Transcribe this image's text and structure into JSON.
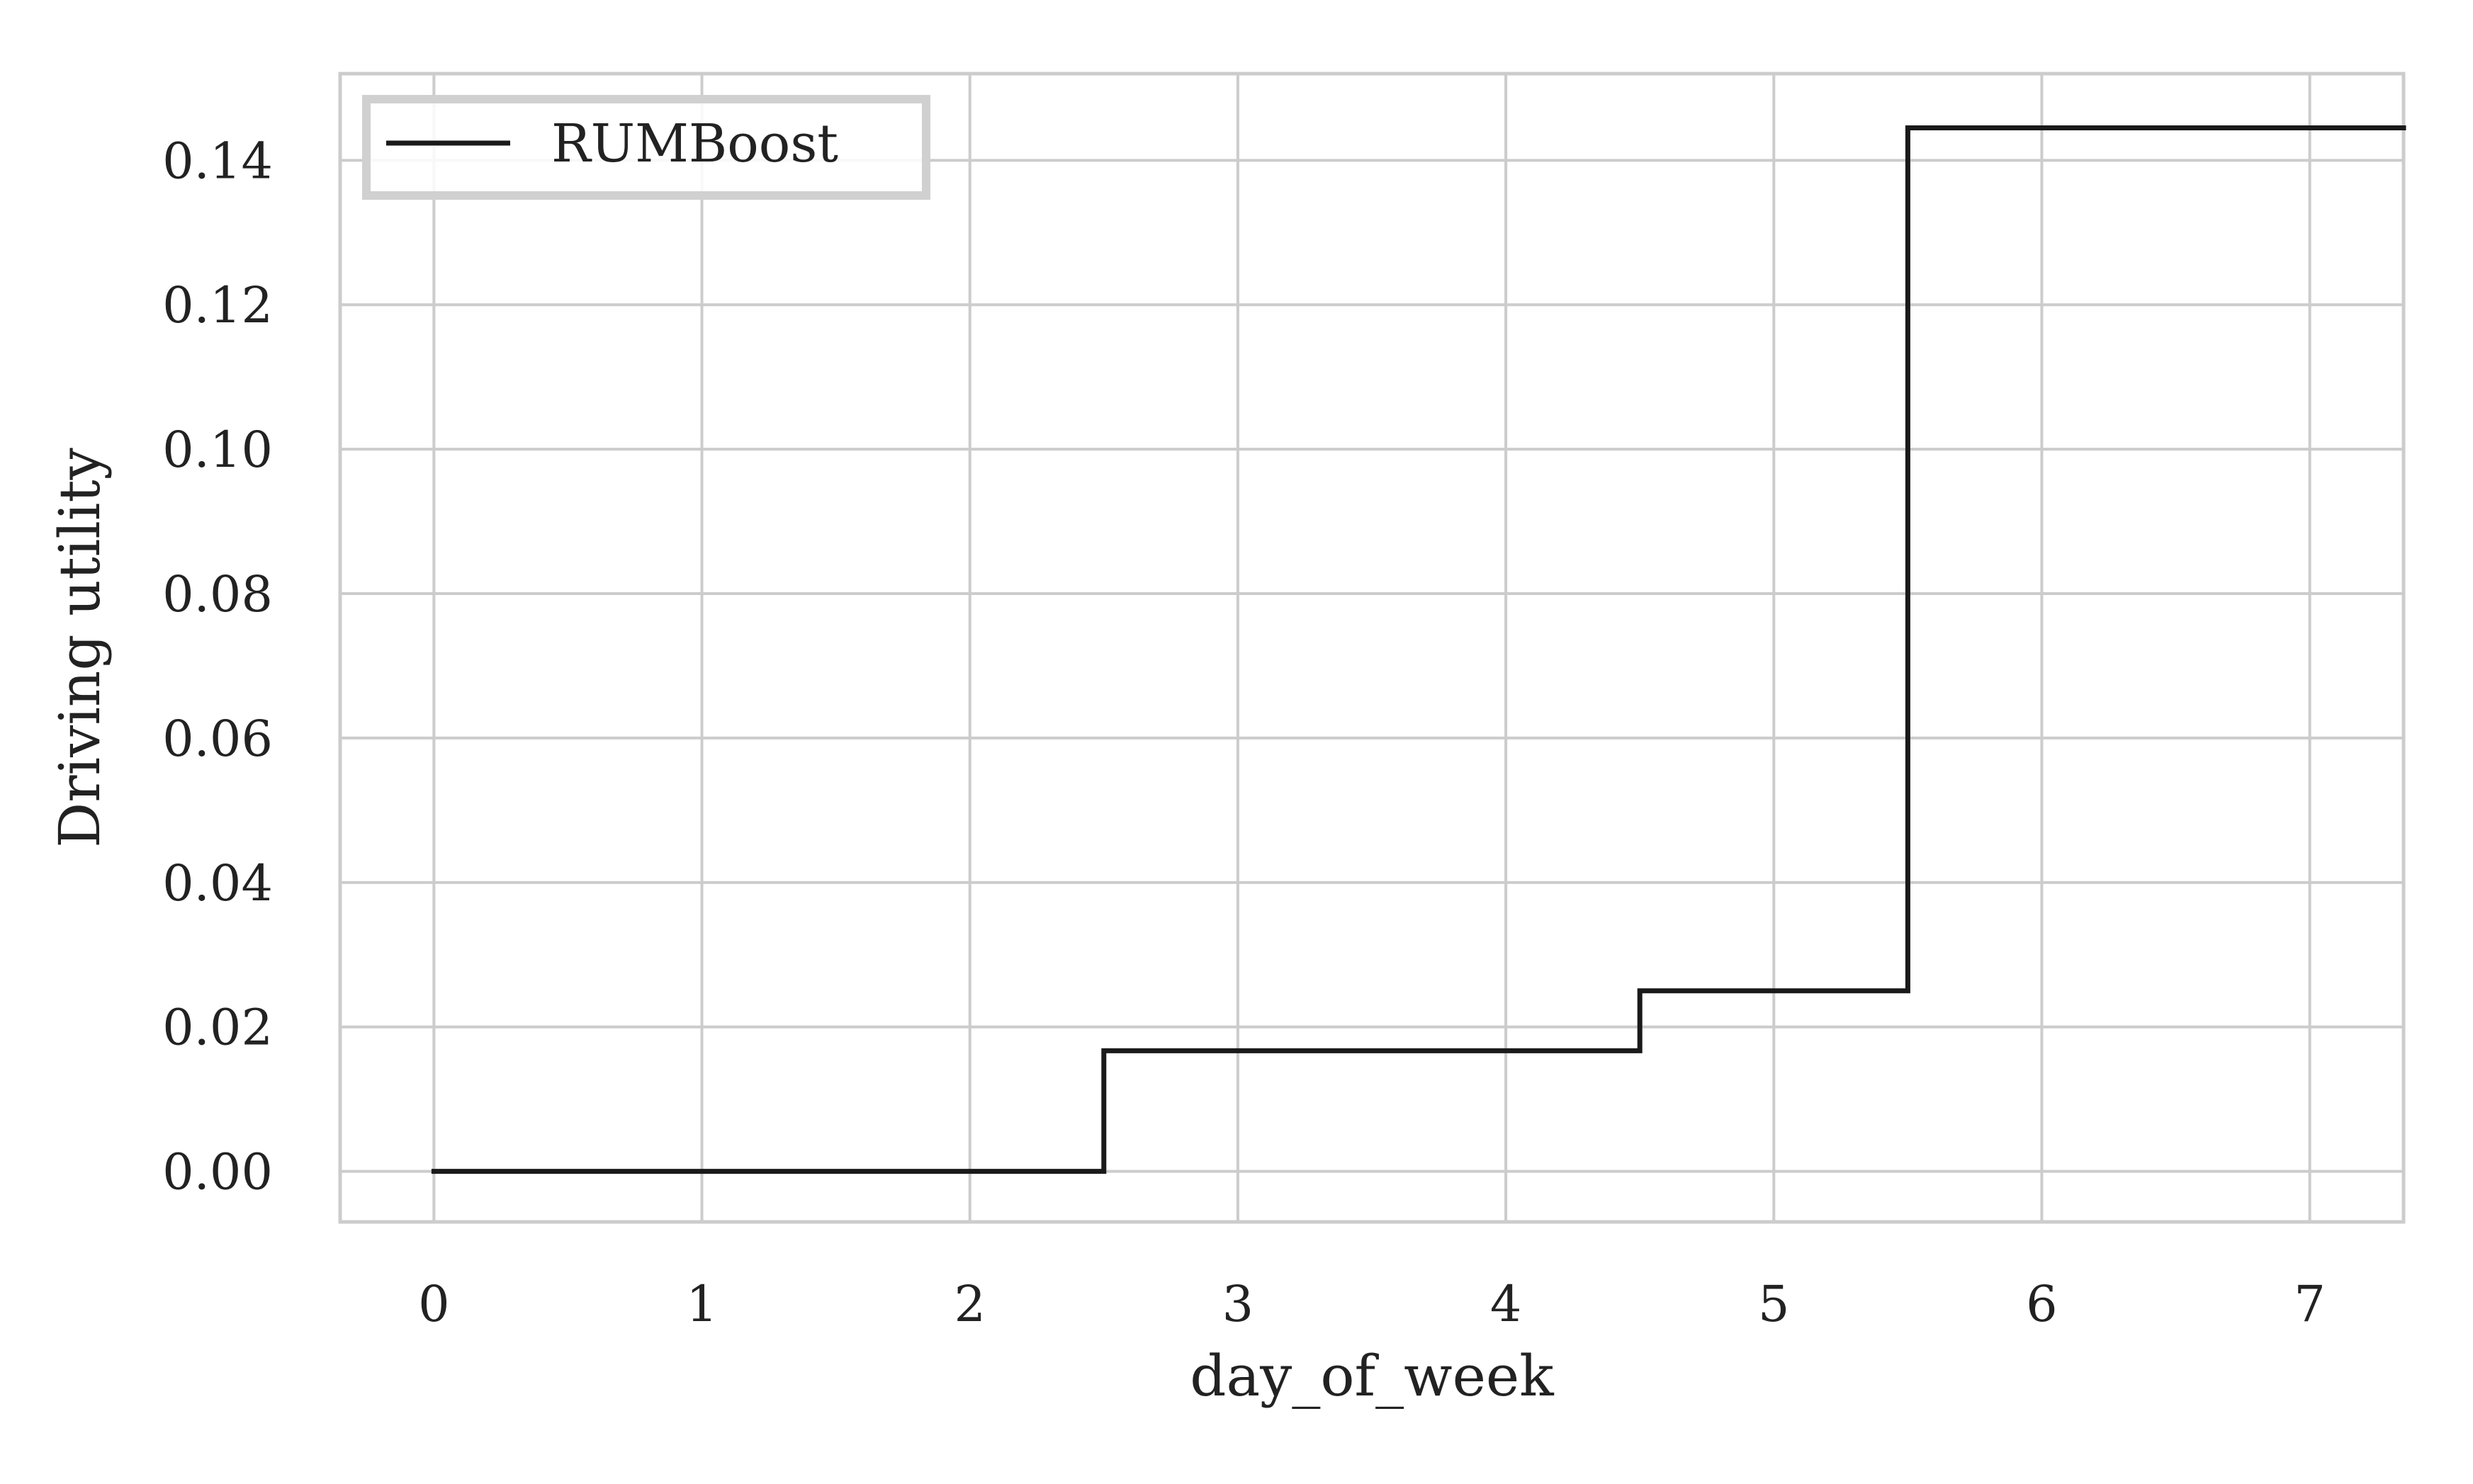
{
  "chart_data": {
    "type": "line",
    "drawstyle": "steps",
    "xlabel": "day_of_week",
    "ylabel": "Driving utility",
    "xlim": [
      -0.35,
      7.35
    ],
    "ylim": [
      -0.007,
      0.152
    ],
    "x_ticks": [
      0,
      1,
      2,
      3,
      4,
      5,
      6,
      7
    ],
    "x_tick_labels": [
      "0",
      "1",
      "2",
      "3",
      "4",
      "5",
      "6",
      "7"
    ],
    "y_ticks": [
      0.0,
      0.02,
      0.04,
      0.06,
      0.08,
      0.1,
      0.12,
      0.14
    ],
    "y_tick_labels": [
      "0.00",
      "0.02",
      "0.04",
      "0.06",
      "0.08",
      "0.10",
      "0.12",
      "0.14"
    ],
    "grid": true,
    "legend": {
      "placement": "top-left",
      "entries": [
        "RUMBoost"
      ]
    },
    "series": [
      {
        "name": "RUMBoost",
        "color": "#1a1a1a",
        "x": [
          0,
          2.5,
          2.5,
          4.5,
          4.5,
          5.5,
          5.5,
          7.35
        ],
        "y": [
          0.0,
          0.0,
          0.0167,
          0.0167,
          0.025,
          0.025,
          0.1445,
          0.1445
        ]
      }
    ]
  },
  "colors": {
    "grid": "#cccccc",
    "spine": "#cccccc",
    "text": "#222222",
    "line": "#1a1a1a",
    "legend_border": "#d0d0d0"
  }
}
